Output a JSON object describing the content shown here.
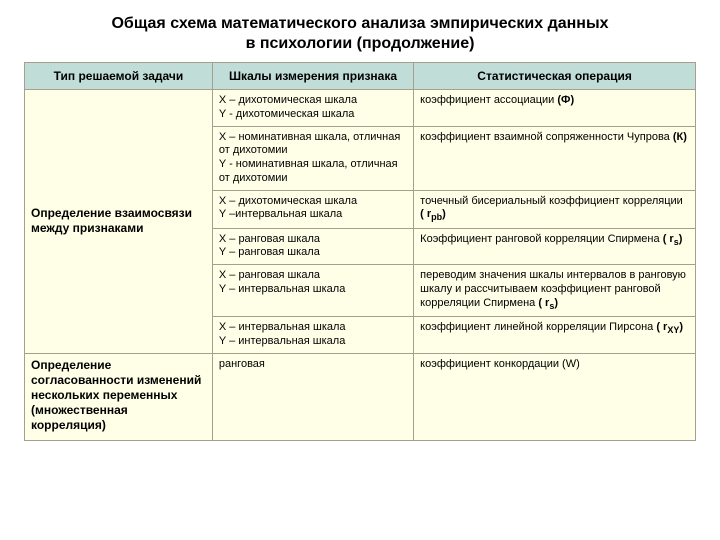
{
  "title_line1": "Общая схема математического анализа эмпирических данных",
  "title_line2": "в психологии (продолжение)",
  "colors": {
    "header_bg": "#c1ddd8",
    "body_bg": "#feffe6",
    "border": "#a79f8e"
  },
  "headers": {
    "c1": "Тип решаемой задачи",
    "c2": "Шкалы измерения признака",
    "c3": "Статистическая операция"
  },
  "task1": "Определение взаимосвязи между признаками",
  "task2": "Определение согласованности изменений нескольких переменных (множественная корреляция)",
  "rows": [
    {
      "scale_l1": "Х – дихотомическая шкала",
      "scale_l2": "Y - дихотомическая шкала",
      "op_prefix": "коэффициент ассоциации ",
      "op_bold": "(Ф)"
    },
    {
      "scale_l1": "Х – номинативная шкала, отличная от дихотомии",
      "scale_l2": "Y - номинативная шкала, отличная от дихотомии",
      "op_prefix": "коэффициент взаимной сопряженности Чупрова ",
      "op_bold": "(К)"
    },
    {
      "scale_l1": "Х – дихотомическая шкала",
      "scale_l2": "Y –интервальная шкала",
      "op_prefix": "точечный бисериальный коэффициент корреляции ",
      "op_bold_pre": "( r",
      "op_sub": "pb",
      "op_bold_post": ")"
    },
    {
      "scale_l1": "Х – ранговая шкала",
      "scale_l2": "Y – ранговая шкала",
      "op_prefix": "Коэффициент ранговой корреляции Спирмена ",
      "op_bold_pre": "( r",
      "op_sub": "s",
      "op_bold_post": ")"
    },
    {
      "scale_l1": "Х – ранговая шкала",
      "scale_l2": "Y – интервальная шкала",
      "op_prefix": "переводим значения шкалы интервалов в ранговую шкалу и рассчитываем коэффициент ранговой корреляции Спирмена ",
      "op_bold_pre": "( r",
      "op_sub": "s",
      "op_bold_post": ")"
    },
    {
      "scale_l1": "Х – интервальная шкала",
      "scale_l2": "Y – интервальная шкала",
      "op_prefix": "коэффициент линейной корреляции Пирсона ",
      "op_bold_pre": "( r",
      "op_sub": "XY",
      "op_bold_post": ")"
    }
  ],
  "row7": {
    "scale": "ранговая",
    "op": "коэффициент конкордации (W)"
  }
}
